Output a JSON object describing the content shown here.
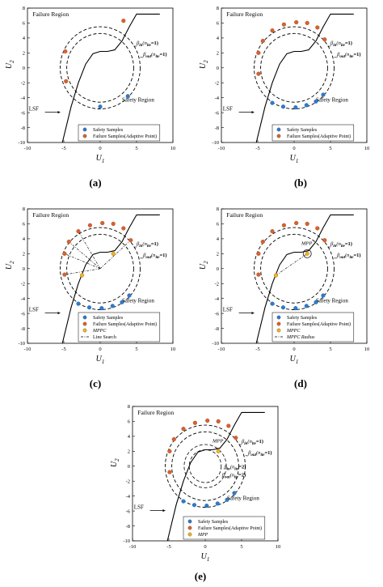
{
  "figure": {
    "panels": [
      {
        "caption": "(a)",
        "region_failure": "Failure Region",
        "region_safety": "Safety Region",
        "lsf_label": "LSF",
        "xlabel": "U",
        "xlabel_sub": "1",
        "ylabel": "U",
        "ylabel_sub": "2",
        "xticks": [
          "-10",
          "-5",
          "0",
          "5",
          "10"
        ],
        "yticks": [
          "8",
          "6",
          "4",
          "2",
          "0",
          "-2",
          "-4",
          "-6",
          "-8",
          "-10"
        ],
        "beta_in": {
          "sym": "β",
          "sub": "in",
          "paren_sym": "n",
          "paren_sub": "ite",
          "val": "=1)"
        },
        "beta_out": {
          "sym": "β",
          "sub": "out",
          "paren_sym": "n",
          "paren_sub": "ite",
          "val": "=1)"
        },
        "legend": [
          {
            "label": "Safety Samples",
            "color": "#2b7bd0",
            "marker": "circle"
          },
          {
            "label": "Failure Samples(Adaptive Point)",
            "color": "#d9622b",
            "marker": "circle"
          }
        ],
        "extras": [],
        "safety_points": [
          [
            0.0,
            -5.2
          ],
          [
            3.8,
            -3.8
          ]
        ],
        "failure_points": [
          [
            -4.8,
            2.2
          ],
          [
            -4.7,
            -1.8
          ],
          [
            3.2,
            6.3
          ]
        ]
      },
      {
        "caption": "(b)",
        "region_failure": "Failure Region",
        "region_safety": "Safety Region",
        "lsf_label": "LSF",
        "xlabel": "U",
        "xlabel_sub": "1",
        "ylabel": "U",
        "ylabel_sub": "2",
        "xticks": [
          "-10",
          "-5",
          "0",
          "5",
          "10"
        ],
        "yticks": [
          "8",
          "6",
          "4",
          "2",
          "0",
          "-2",
          "-4",
          "-6",
          "-8",
          "-10"
        ],
        "beta_in": {
          "sym": "β",
          "sub": "in",
          "paren_sym": "n",
          "paren_sub": "ite",
          "val": "=1)"
        },
        "beta_out": {
          "sym": "β",
          "sub": "out",
          "paren_sym": "n",
          "paren_sub": "ite",
          "val": "=1)"
        },
        "legend": [
          {
            "label": "Safety Samples",
            "color": "#2b7bd0",
            "marker": "circle"
          },
          {
            "label": "Failure Samples(Adaptive Point)",
            "color": "#d9622b",
            "marker": "circle"
          }
        ],
        "extras": [],
        "safety_points": [
          [
            -3.0,
            -4.7
          ],
          [
            -1.5,
            -5.2
          ],
          [
            0.2,
            -5.3
          ],
          [
            1.7,
            -5.0
          ],
          [
            3.0,
            -4.5
          ],
          [
            4.0,
            -3.6
          ]
        ],
        "failure_points": [
          [
            -4.9,
            2.0
          ],
          [
            -4.9,
            -0.8
          ],
          [
            -4.3,
            3.6
          ],
          [
            -3.0,
            5.0
          ],
          [
            -1.4,
            5.8
          ],
          [
            0.3,
            6.1
          ],
          [
            1.8,
            6.0
          ],
          [
            3.2,
            5.4
          ],
          [
            4.2,
            3.8
          ]
        ]
      },
      {
        "caption": "(c)",
        "region_failure": "Failure Region",
        "region_safety": "Safety Region",
        "lsf_label": "LSF",
        "xlabel": "U",
        "xlabel_sub": "1",
        "ylabel": "U",
        "ylabel_sub": "2",
        "xticks": [
          "-10",
          "-5",
          "0",
          "5",
          "10"
        ],
        "yticks": [
          "8",
          "6",
          "4",
          "2",
          "0",
          "-2",
          "-4",
          "-6",
          "-8",
          "-10"
        ],
        "beta_in": {
          "sym": "β",
          "sub": "in",
          "paren_sym": "n",
          "paren_sub": "ite",
          "val": "=1)"
        },
        "beta_out": {
          "sym": "β",
          "sub": "out",
          "paren_sym": "n",
          "paren_sub": "ite",
          "val": "=1)"
        },
        "legend": [
          {
            "label": "Safety Samples",
            "color": "#2b7bd0",
            "marker": "circle"
          },
          {
            "label": "Failure Samples(Adaptive Point)",
            "color": "#d9622b",
            "marker": "circle"
          },
          {
            "label": "MPPC",
            "color": "#f2b21e",
            "marker": "circle"
          },
          {
            "label": "Line Search",
            "color": "#000000",
            "marker": "dashdot"
          }
        ],
        "extras": [],
        "safety_points": [
          [
            -3.0,
            -4.7
          ],
          [
            -1.5,
            -5.2
          ],
          [
            0.2,
            -5.3
          ],
          [
            1.7,
            -5.0
          ],
          [
            3.0,
            -4.5
          ],
          [
            4.0,
            -3.6
          ]
        ],
        "failure_points": [
          [
            -4.9,
            2.0
          ],
          [
            -4.9,
            -0.8
          ],
          [
            -4.3,
            3.6
          ],
          [
            -3.0,
            5.0
          ],
          [
            -1.4,
            5.8
          ],
          [
            0.3,
            6.1
          ],
          [
            1.8,
            6.0
          ],
          [
            3.2,
            5.4
          ],
          [
            4.2,
            3.8
          ]
        ],
        "mppc_points": [
          [
            -2.5,
            -0.9
          ],
          [
            1.8,
            2.0
          ]
        ]
      },
      {
        "caption": "(d)",
        "region_failure": "Failure Region",
        "region_safety": "Safety Region",
        "lsf_label": "LSF",
        "xlabel": "U",
        "xlabel_sub": "1",
        "ylabel": "U",
        "ylabel_sub": "2",
        "xticks": [
          "-10",
          "-5",
          "0",
          "5",
          "10"
        ],
        "yticks": [
          "8",
          "6",
          "4",
          "2",
          "0",
          "-2",
          "-4",
          "-6",
          "-8",
          "-10"
        ],
        "mpp_label": "MPP",
        "beta_in": {
          "sym": "β",
          "sub": "in",
          "paren_sym": "n",
          "paren_sub": "ite",
          "val": "=1)"
        },
        "beta_out": {
          "sym": "β",
          "sub": "out",
          "paren_sym": "n",
          "paren_sub": "ite",
          "val": "=1)"
        },
        "legend": [
          {
            "label": "Safety Samples",
            "color": "#2b7bd0",
            "marker": "circle"
          },
          {
            "label": "Failure Samples(Adaptive Point)",
            "color": "#d9622b",
            "marker": "circle"
          },
          {
            "label": "MPPC",
            "color": "#f2b21e",
            "marker": "circle"
          },
          {
            "label": "MPPC Radius",
            "color": "#000000",
            "marker": "dashdot"
          }
        ],
        "extras": [],
        "safety_points": [
          [
            -3.0,
            -4.7
          ],
          [
            -1.5,
            -5.2
          ],
          [
            0.2,
            -5.3
          ],
          [
            1.7,
            -5.0
          ],
          [
            3.0,
            -4.5
          ],
          [
            4.0,
            -3.6
          ]
        ],
        "failure_points": [
          [
            -4.9,
            2.0
          ],
          [
            -4.9,
            -0.8
          ],
          [
            -4.3,
            3.6
          ],
          [
            -3.0,
            5.0
          ],
          [
            -1.4,
            5.8
          ],
          [
            0.3,
            6.1
          ],
          [
            1.8,
            6.0
          ],
          [
            3.2,
            5.4
          ],
          [
            4.2,
            3.8
          ]
        ],
        "mppc_points": [
          [
            -2.5,
            -0.9
          ],
          [
            1.8,
            2.0
          ]
        ]
      },
      {
        "caption": "(e)",
        "region_failure": "Failure Region",
        "region_safety": "Safety Region",
        "lsf_label": "LSF",
        "xlabel": "U",
        "xlabel_sub": "1",
        "ylabel": "U",
        "ylabel_sub": "2",
        "xticks": [
          "-10",
          "-5",
          "0",
          "5",
          "10"
        ],
        "yticks": [
          "8",
          "6",
          "4",
          "2",
          "0",
          "-2",
          "-4",
          "-6",
          "-8",
          "-10"
        ],
        "mpp_label": "MPP",
        "beta_in": {
          "sym": "β",
          "sub": "in",
          "paren_sym": "n",
          "paren_sub": "ite",
          "val": "=1)"
        },
        "beta_out": {
          "sym": "β",
          "sub": "out",
          "paren_sym": "n",
          "paren_sub": "ite",
          "val": "=1)"
        },
        "beta_in2": {
          "sym": "β",
          "sub": "in",
          "paren_sym": "n",
          "paren_sub": "ite",
          "val": "=2)"
        },
        "beta_out2": {
          "sym": "β",
          "sub": "out",
          "paren_sym": "n",
          "paren_sub": "ite",
          "val": "=2)"
        },
        "legend": [
          {
            "label": "Safety Samples",
            "color": "#2b7bd0",
            "marker": "circle"
          },
          {
            "label": "Failure Samples(Adaptive Point)",
            "color": "#d9622b",
            "marker": "circle"
          },
          {
            "label": "MPP",
            "color": "#f2b21e",
            "marker": "circle"
          }
        ],
        "extras": [],
        "safety_points": [
          [
            -3.0,
            -4.7
          ],
          [
            -1.5,
            -5.2
          ],
          [
            0.2,
            -5.3
          ],
          [
            1.7,
            -5.0
          ],
          [
            3.0,
            -4.5
          ],
          [
            4.0,
            -3.6
          ]
        ],
        "failure_points": [
          [
            -4.9,
            2.0
          ],
          [
            -4.9,
            -0.8
          ],
          [
            -4.3,
            3.6
          ],
          [
            -3.0,
            5.0
          ],
          [
            -1.4,
            5.8
          ],
          [
            0.3,
            6.1
          ],
          [
            1.8,
            6.0
          ],
          [
            3.2,
            5.4
          ],
          [
            4.2,
            3.8
          ]
        ],
        "mppc_points": [
          [
            1.8,
            2.0
          ]
        ]
      }
    ]
  }
}
